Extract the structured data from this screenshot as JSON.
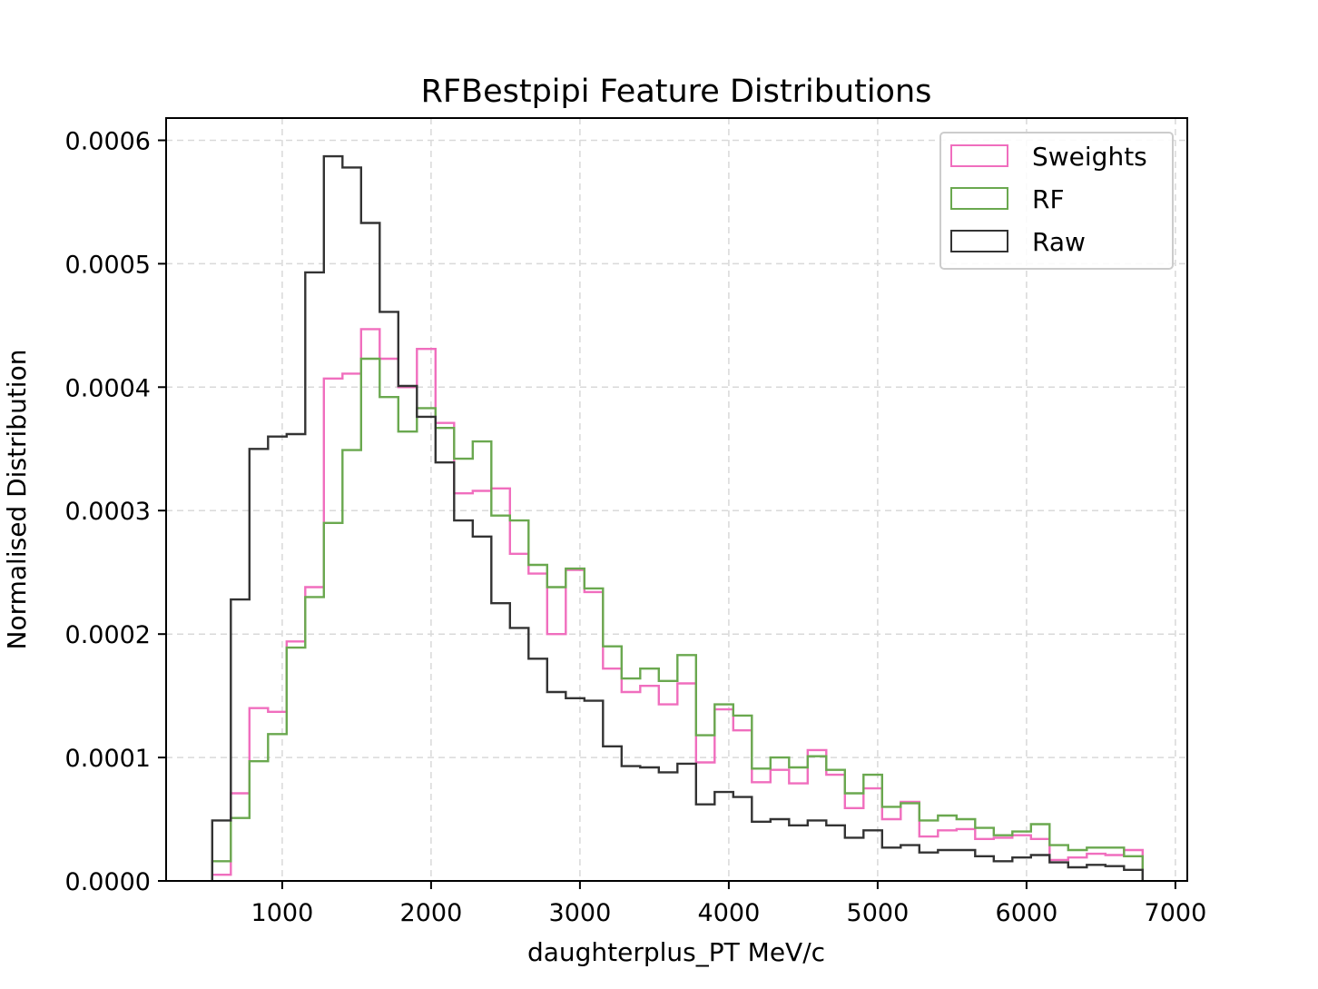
{
  "chart_data": {
    "type": "histogram",
    "title": "RFBestpipi Feature Distributions",
    "xlabel": "daughterplus_PT MeV/c",
    "ylabel": "Normalised Distribution",
    "xlim": [
      220,
      7080
    ],
    "ylim": [
      0,
      0.000618
    ],
    "grid": true,
    "legend_position": "upper right",
    "x_ticks": [
      1000,
      2000,
      3000,
      4000,
      5000,
      6000,
      7000
    ],
    "x_tick_labels": [
      "1000",
      "2000",
      "3000",
      "4000",
      "5000",
      "6000",
      "7000"
    ],
    "y_ticks": [
      0,
      0.0001,
      0.0002,
      0.0003,
      0.0004,
      0.0005,
      0.0006
    ],
    "y_tick_labels": [
      "0.0000",
      "0.0001",
      "0.0002",
      "0.0003",
      "0.0004",
      "0.0005",
      "0.0006"
    ],
    "bin_start": 530,
    "bin_width": 125,
    "series": [
      {
        "name": "Sweights",
        "color": "#f06ebe",
        "values": [
          5e-06,
          7.1e-05,
          0.00014,
          0.000137,
          0.000194,
          0.000238,
          0.000407,
          0.000411,
          0.000447,
          0.000423,
          0.0004,
          0.000431,
          0.000371,
          0.000314,
          0.000316,
          0.000318,
          0.000265,
          0.000249,
          0.0002,
          0.000252,
          0.000234,
          0.000172,
          0.000153,
          0.000158,
          0.000143,
          0.00016,
          9.6e-05,
          0.000139,
          0.000122,
          8e-05,
          9e-05,
          7.9e-05,
          0.000106,
          8.6e-05,
          5.9e-05,
          7.5e-05,
          5e-05,
          6.4e-05,
          3.6e-05,
          4.1e-05,
          4.2e-05,
          3.4e-05,
          3.5e-05,
          3.7e-05,
          3.4e-05,
          1.7e-05,
          1.9e-05,
          2.2e-05,
          2.1e-05,
          2.5e-05
        ]
      },
      {
        "name": "RF",
        "color": "#6aa84f",
        "values": [
          1.6e-05,
          5.1e-05,
          9.7e-05,
          0.000119,
          0.000189,
          0.00023,
          0.00029,
          0.000349,
          0.000423,
          0.000392,
          0.000364,
          0.000383,
          0.000367,
          0.000342,
          0.000356,
          0.000296,
          0.000292,
          0.000256,
          0.000238,
          0.000253,
          0.000237,
          0.00019,
          0.000164,
          0.000172,
          0.000162,
          0.000183,
          0.000118,
          0.000143,
          0.000134,
          9.1e-05,
          0.0001,
          9.2e-05,
          0.000101,
          9e-05,
          7.1e-05,
          8.6e-05,
          6e-05,
          6.3e-05,
          4.9e-05,
          5.3e-05,
          5e-05,
          4.3e-05,
          3.7e-05,
          4e-05,
          4.6e-05,
          2.9e-05,
          2.5e-05,
          2.7e-05,
          2.7e-05,
          2e-05
        ]
      },
      {
        "name": "Raw",
        "color": "#333333",
        "values": [
          4.9e-05,
          0.000228,
          0.00035,
          0.00036,
          0.000362,
          0.000493,
          0.000587,
          0.000578,
          0.000533,
          0.000461,
          0.000401,
          0.000376,
          0.000339,
          0.000292,
          0.000279,
          0.000225,
          0.000205,
          0.00018,
          0.000153,
          0.000148,
          0.000146,
          0.000109,
          9.3e-05,
          9.2e-05,
          8.8e-05,
          9.5e-05,
          6.2e-05,
          7.2e-05,
          6.8e-05,
          4.8e-05,
          5e-05,
          4.5e-05,
          4.9e-05,
          4.5e-05,
          3.5e-05,
          4.1e-05,
          2.7e-05,
          2.9e-05,
          2.3e-05,
          2.5e-05,
          2.5e-05,
          2e-05,
          1.6e-05,
          1.9e-05,
          2.1e-05,
          1.5e-05,
          1.1e-05,
          1.3e-05,
          1.2e-05,
          9e-06
        ]
      }
    ]
  }
}
